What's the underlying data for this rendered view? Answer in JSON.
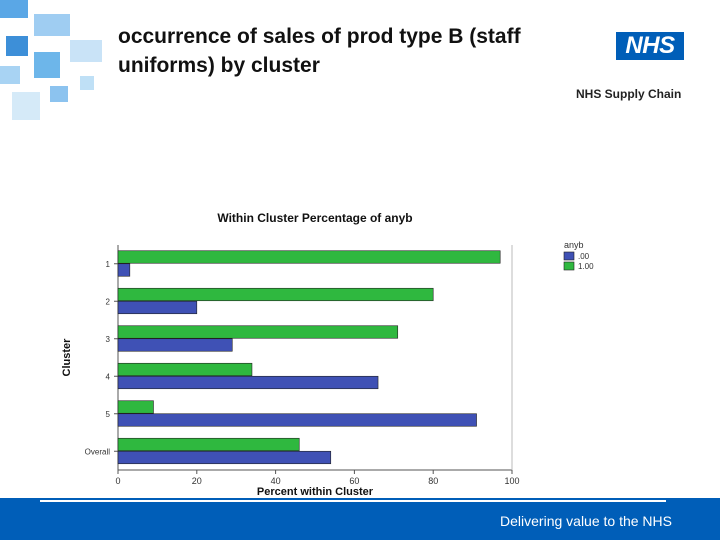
{
  "slide": {
    "title_line1": "occurrence of sales of prod type B (staff",
    "title_line2": "uniforms) by cluster",
    "logo_text": "NHS",
    "logo_subtitle": "NHS Supply Chain",
    "footer_text": "Delivering value to the NHS"
  },
  "colors": {
    "brand_blue": "#005eb8",
    "series_00": "#3f51b5",
    "series_100": "#2fb83f"
  },
  "chart_data": {
    "type": "bar",
    "orientation": "horizontal",
    "title": "Within Cluster Percentage of anyb",
    "xlabel": "Percent within Cluster",
    "ylabel": "Cluster",
    "categories": [
      "1",
      "2",
      "3",
      "4",
      "5",
      "Overall"
    ],
    "series": [
      {
        "name": "1.00",
        "values": [
          97,
          80,
          71,
          34,
          9,
          46
        ]
      },
      {
        "name": ".00",
        "values": [
          3,
          20,
          29,
          66,
          91,
          54
        ]
      }
    ],
    "xlim": [
      0,
      100
    ],
    "xticks": [
      "0",
      "20",
      "40",
      "60",
      "80",
      "100"
    ],
    "legend_title": "anyb",
    "legend_entries": [
      ".00",
      "1.00"
    ],
    "legend_position": "top-right",
    "grid": false
  }
}
